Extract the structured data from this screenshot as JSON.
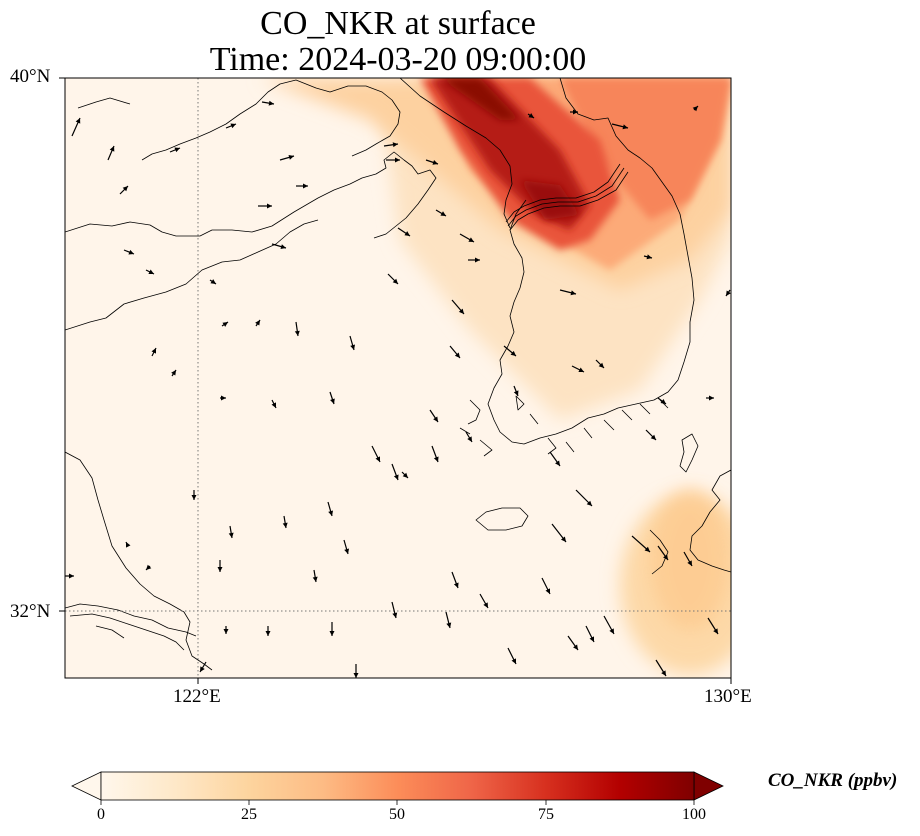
{
  "figure": {
    "title_line1": "CO_NKR at surface",
    "title_line2": "Time: 2024-03-20 09:00:00"
  },
  "map": {
    "lat_labels": [
      "40°N",
      "32°N"
    ],
    "lon_labels": [
      "122°E",
      "130°E"
    ],
    "gridlines": "dotted",
    "wind_vectors": "shown"
  },
  "colorbar": {
    "label": "CO_NKR (ppbv)",
    "ticks": [
      "0",
      "25",
      "50",
      "75",
      "100"
    ],
    "min": 0,
    "max": 100,
    "extend": "both",
    "colormap": "OrRd",
    "colors": [
      "#fff7ec",
      "#fee8c8",
      "#fdd49e",
      "#fdbb84",
      "#fc8d59",
      "#ef6548",
      "#d7301f",
      "#b30000",
      "#7f0000"
    ]
  },
  "chart_data": {
    "type": "heatmap",
    "title": "CO_NKR at surface",
    "subtitle": "Time: 2024-03-20 09:00:00",
    "variable": "CO_NKR (ppbv)",
    "x_range_lon": [
      120,
      130
    ],
    "y_range_lat": [
      31,
      40
    ],
    "x_ticks": [
      "122°E",
      "130°E"
    ],
    "y_ticks": [
      "40°N",
      "32°N"
    ],
    "color_range": [
      0,
      100
    ],
    "plume_max_ppbv": 100,
    "plume_region": "northern Korea / Bohai Bay (approx. 126–128°E, 37.5–40°N)"
  }
}
